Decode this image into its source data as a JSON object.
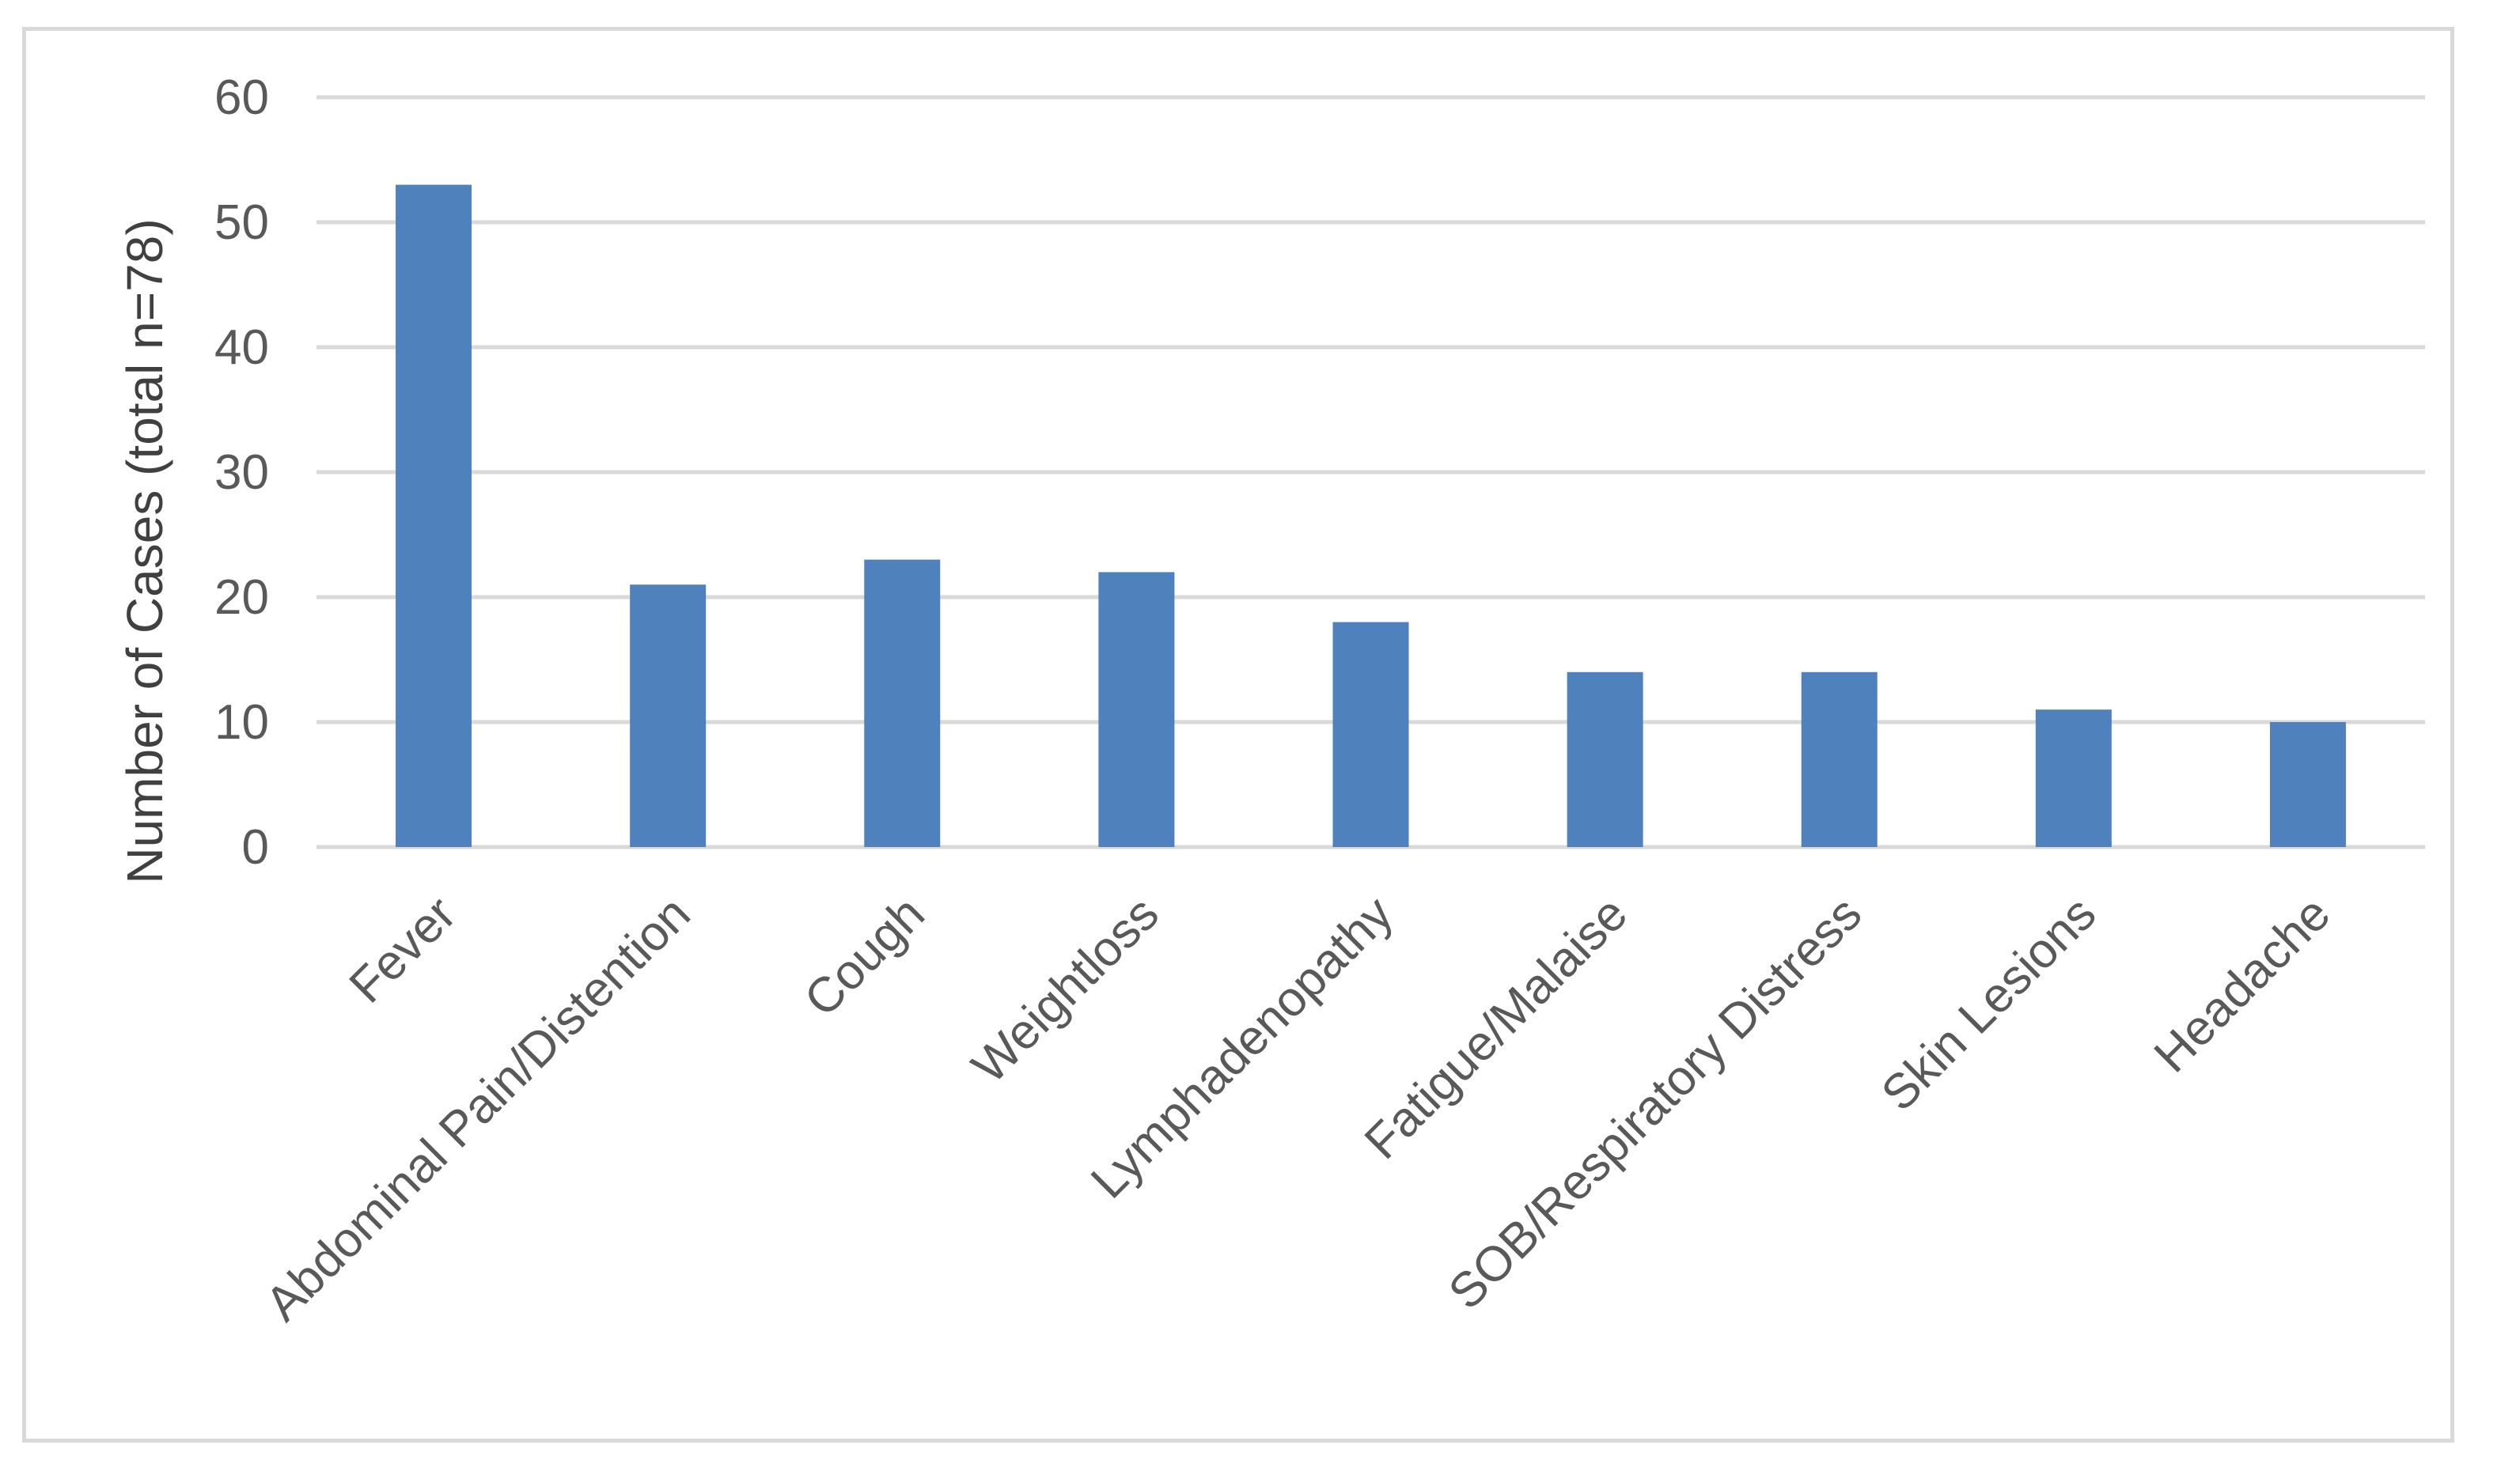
{
  "chart_data": {
    "type": "bar",
    "title": "",
    "xlabel": "",
    "ylabel": "Number of Cases (total n=78)",
    "categories": [
      "Fever",
      "Abdominal Pain/Distention",
      "Cough",
      "Weightloss",
      "Lymphadenopathy",
      "Fatigue/Malaise",
      "SOB/Respiratory Distress",
      "Skin Lesions",
      "Headache"
    ],
    "values": [
      53,
      21,
      23,
      22,
      18,
      14,
      14,
      11,
      10
    ],
    "ylim": [
      0,
      60
    ],
    "yticks": [
      "0",
      "10",
      "20",
      "30",
      "40",
      "50",
      "60"
    ],
    "grid": true,
    "legend": "none",
    "bar_color": "#4f81bd",
    "gridline_color": "#d9d9d9"
  }
}
